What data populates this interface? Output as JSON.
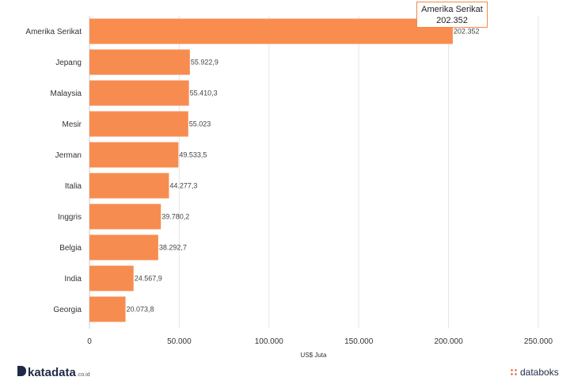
{
  "chart_data": {
    "type": "bar",
    "orientation": "horizontal",
    "categories": [
      "Amerika Serikat",
      "Jepang",
      "Malaysia",
      "Mesir",
      "Jerman",
      "Italia",
      "Inggris",
      "Belgia",
      "India",
      "Georgia"
    ],
    "values": [
      202352,
      55922.9,
      55410.3,
      55023,
      49533.5,
      44277.3,
      39780.2,
      38292.7,
      24567.9,
      20073.8
    ],
    "data_labels": [
      "202.352",
      "55.922,9",
      "55.410,3",
      "55.023",
      "49.533,5",
      "44.277,3",
      "39.780,2",
      "38.292,7",
      "24.567,9",
      "20.073,8"
    ],
    "xlabel": "US$ Juta",
    "xlim": [
      0,
      250000
    ],
    "ticks": [
      0,
      50000,
      100000,
      150000,
      200000,
      250000
    ],
    "tick_labels": [
      "0",
      "50.000",
      "100.000",
      "150.000",
      "200.000",
      "250.000"
    ],
    "grid": true,
    "bar_color": "#f78c50",
    "bar_highlight_color": "#f98d4f",
    "tooltip": {
      "title": "Amerika Serikat",
      "value": "202.352"
    }
  },
  "branding": {
    "left_logo_text": "katadata",
    "left_logo_suffix": ".co.id",
    "right_logo_text": "databoks"
  }
}
